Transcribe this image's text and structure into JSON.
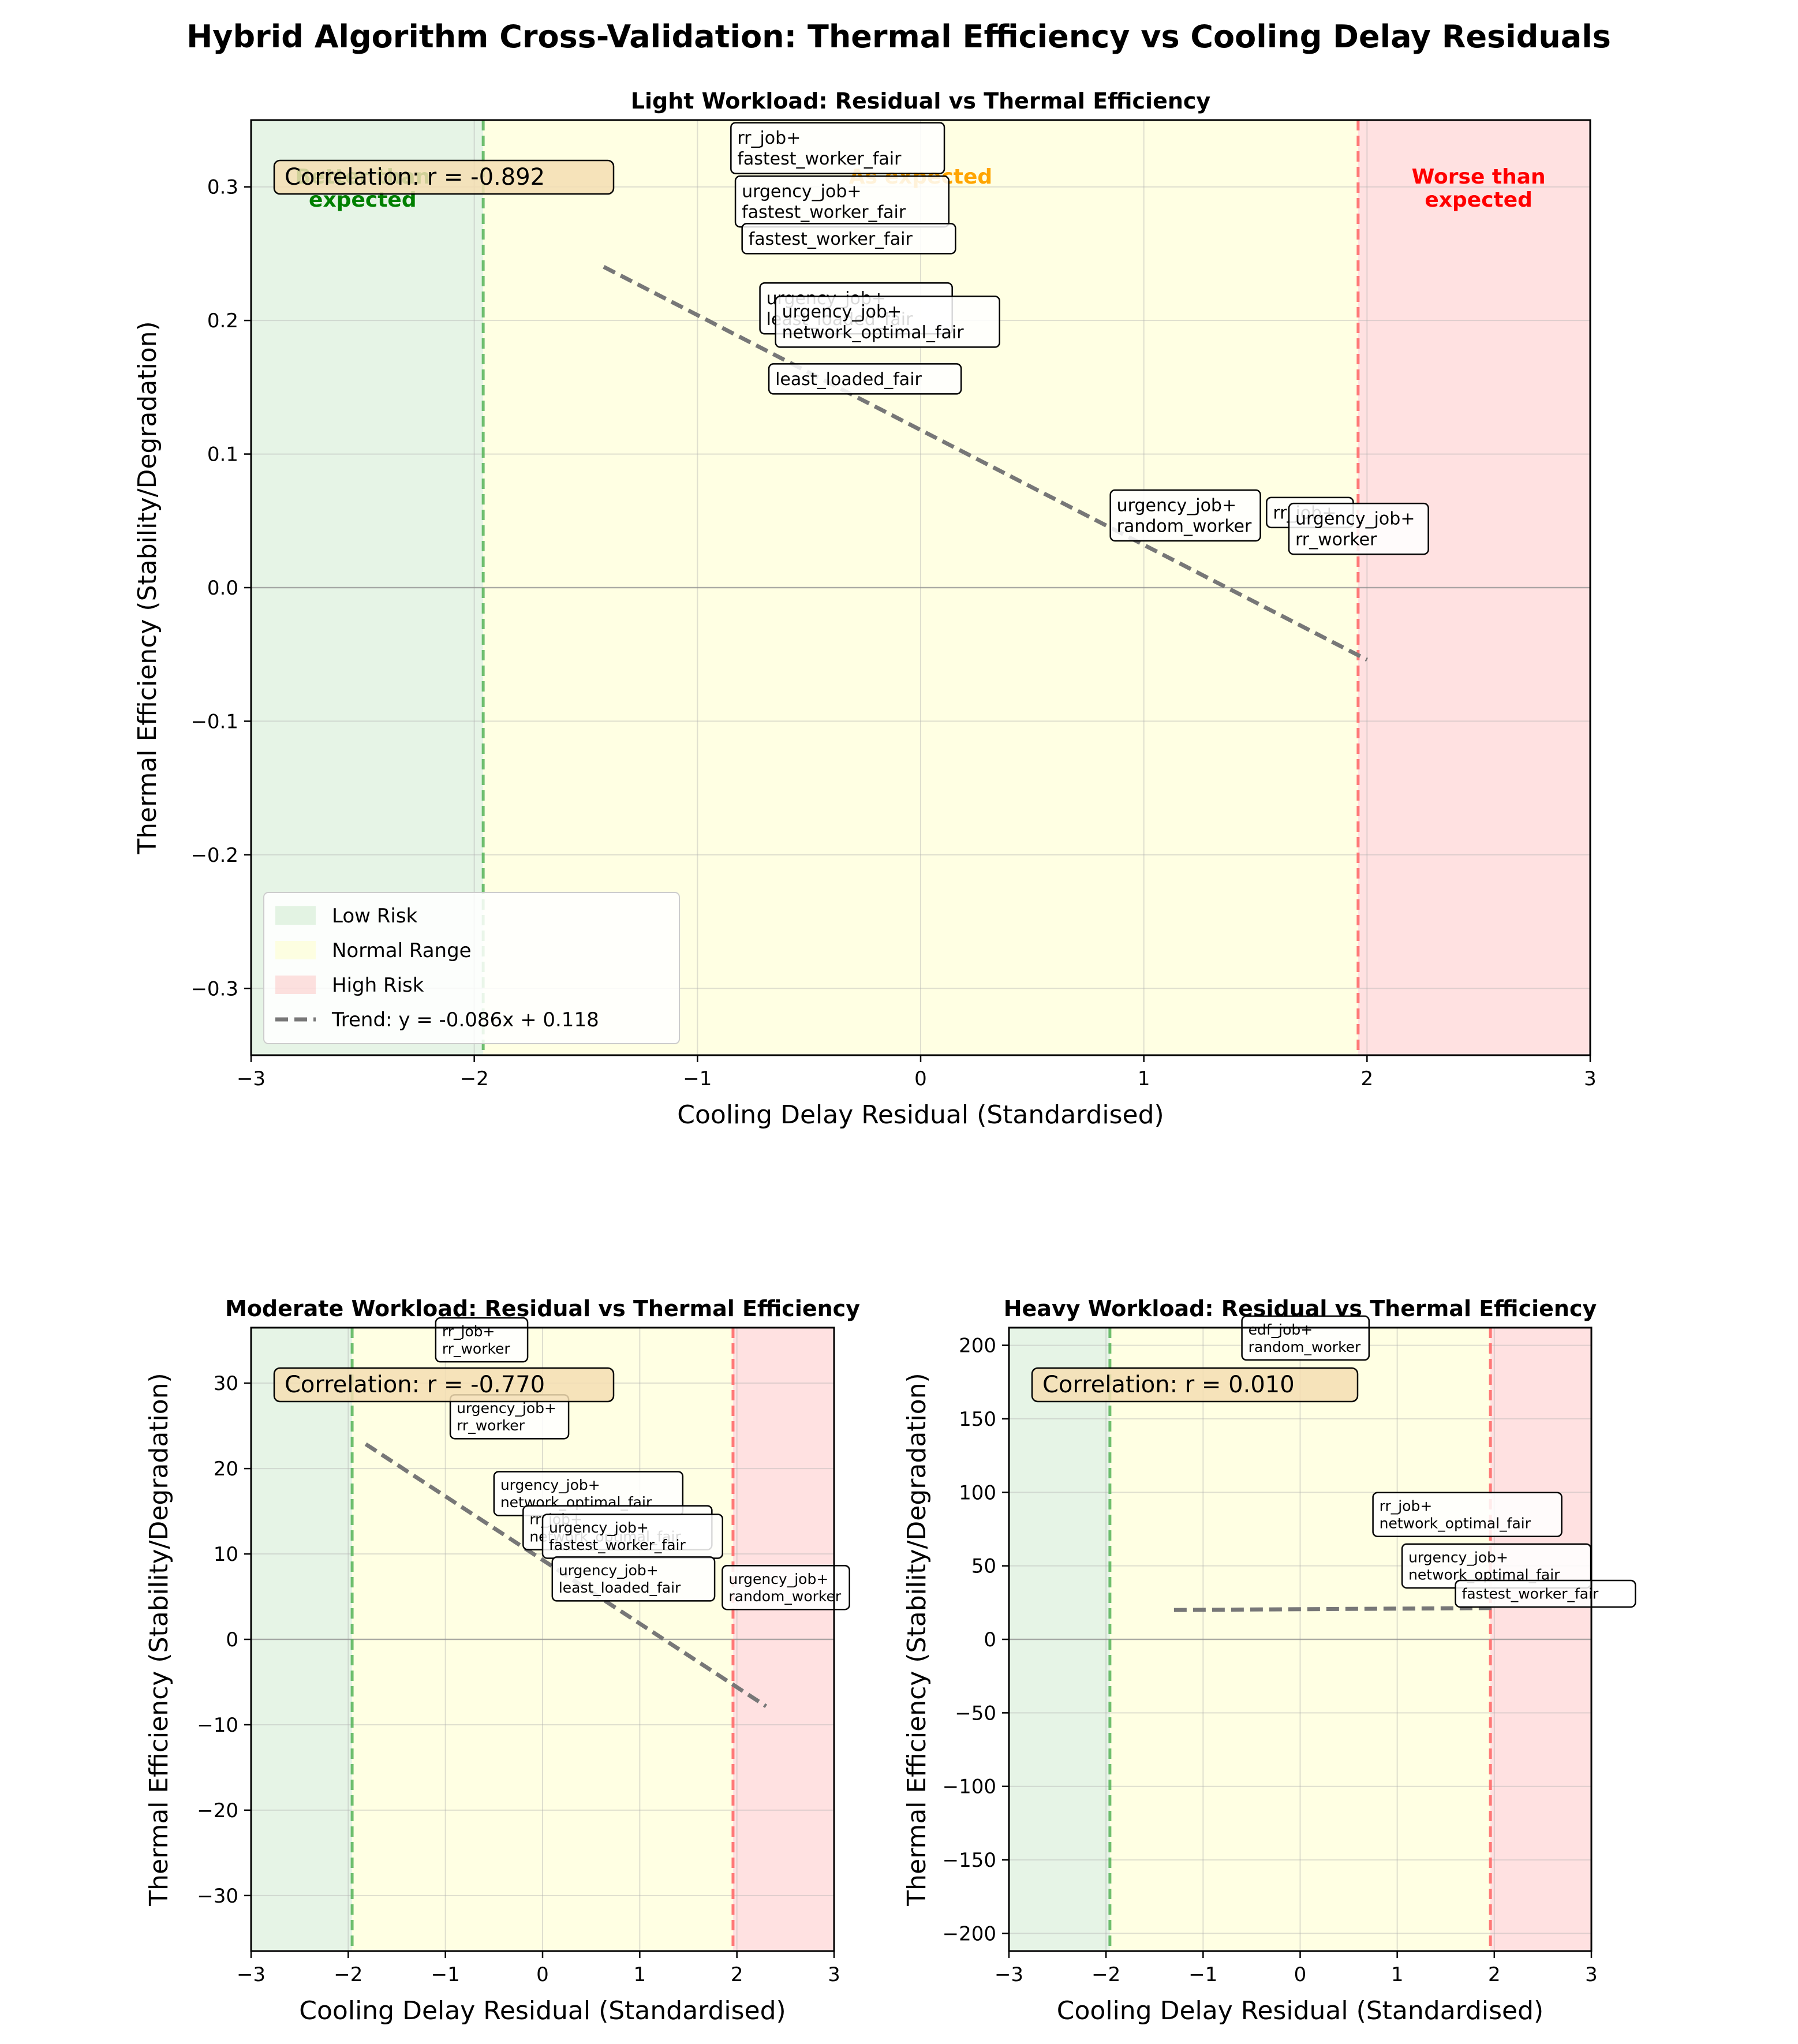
{
  "title": "Hybrid Algorithm Cross-Validation: Thermal Efficiency vs Cooling Delay Residuals",
  "colors": {
    "low_risk": "#4caf50",
    "normal": "#ffff99",
    "high_risk": "#ff6b6b",
    "trend": "#777777",
    "corr_box": "#f5deb3"
  },
  "chart_data": [
    {
      "type": "scatter",
      "title": "Light Workload: Residual vs Thermal Efficiency",
      "xlabel": "Cooling Delay Residual (Standardised)",
      "ylabel": "Thermal Efficiency (Stability/Degradation)",
      "xlim": [
        -3,
        3
      ],
      "ylim": [
        -0.35,
        0.35
      ],
      "xticks": [
        -3,
        -2,
        -1,
        0,
        1,
        2,
        3
      ],
      "yticks": [
        -0.3,
        -0.2,
        -0.1,
        0.0,
        0.1,
        0.2,
        0.3
      ],
      "grid": true,
      "legend_position": "lower-left",
      "zones": {
        "low_max": -1.96,
        "high_min": 1.96
      },
      "zone_labels": {
        "better": "Better than\nexpected",
        "expected": "As expected",
        "worse": "Worse than\nexpected"
      },
      "legend": [
        "Low Risk",
        "Normal Range",
        "High Risk",
        "Trend: y = -0.086x + 0.118"
      ],
      "correlation": "Correlation: r = -0.892",
      "trend": {
        "slope": -0.086,
        "intercept": 0.118,
        "x_range": [
          -1.42,
          2.0
        ]
      },
      "points": [
        {
          "x": -0.85,
          "y": 0.31,
          "label": "rr_job+\nfastest_worker_fair"
        },
        {
          "x": -0.83,
          "y": 0.27,
          "label": "urgency_job+\nfastest_worker_fair"
        },
        {
          "x": -0.8,
          "y": 0.25,
          "label": "fastest_worker_fair"
        },
        {
          "x": -0.72,
          "y": 0.19,
          "label": "urgency_job+\nleast_loaded_fair"
        },
        {
          "x": -0.65,
          "y": 0.18,
          "label": "urgency_job+\nnetwork_optimal_fair"
        },
        {
          "x": -0.68,
          "y": 0.145,
          "label": "least_loaded_fair"
        },
        {
          "x": 0.85,
          "y": 0.035,
          "label": "urgency_job+\nrandom_worker"
        },
        {
          "x": 1.55,
          "y": 0.045,
          "label": "rr_job+"
        },
        {
          "x": 1.65,
          "y": 0.025,
          "label": "urgency_job+\nrr_worker"
        }
      ]
    },
    {
      "type": "scatter",
      "title": "Moderate Workload: Residual vs Thermal Efficiency",
      "xlabel": "Cooling Delay Residual (Standardised)",
      "ylabel": "Thermal Efficiency (Stability/Degradation)",
      "xlim": [
        -3,
        3
      ],
      "ylim": [
        -36.5,
        36.5
      ],
      "xticks": [
        -3,
        -2,
        -1,
        0,
        1,
        2,
        3
      ],
      "yticks": [
        -30,
        -20,
        -10,
        0,
        10,
        20,
        30
      ],
      "grid": true,
      "zones": {
        "low_max": -1.96,
        "high_min": 1.96
      },
      "correlation": "Correlation: r = -0.770",
      "trend": {
        "slope": -7.45,
        "intercept": 9.3,
        "x_range": [
          -1.82,
          2.3
        ]
      },
      "points": [
        {
          "x": -1.1,
          "y": 32.5,
          "label": "rr_job+\nrr_worker"
        },
        {
          "x": -0.95,
          "y": 23.5,
          "label": "urgency_job+\nrr_worker"
        },
        {
          "x": -0.5,
          "y": 14.5,
          "label": "urgency_job+\nnetwork_optimal_fair"
        },
        {
          "x": -0.2,
          "y": 10.5,
          "label": "rr_job+\nnetwork_optimal_fair"
        },
        {
          "x": 0.0,
          "y": 9.5,
          "label": "urgency_job+\nfastest_worker_fair"
        },
        {
          "x": 0.1,
          "y": 4.5,
          "label": "urgency_job+\nleast_loaded_fair"
        },
        {
          "x": 1.85,
          "y": 3.5,
          "label": "urgency_job+\nrandom_worker"
        }
      ]
    },
    {
      "type": "scatter",
      "title": "Heavy Workload: Residual vs Thermal Efficiency",
      "xlabel": "Cooling Delay Residual (Standardised)",
      "ylabel": "Thermal Efficiency (Stability/Degradation)",
      "xlim": [
        -3,
        3
      ],
      "ylim": [
        -212,
        212
      ],
      "xticks": [
        -3,
        -2,
        -1,
        0,
        1,
        2,
        3
      ],
      "yticks": [
        -200,
        -150,
        -100,
        -50,
        0,
        50,
        100,
        150,
        200
      ],
      "grid": true,
      "zones": {
        "low_max": -1.96,
        "high_min": 1.96
      },
      "correlation": "Correlation: r = 0.010",
      "trend": {
        "slope": 0.4,
        "intercept": 20.5,
        "x_range": [
          -1.3,
          2.0
        ]
      },
      "points": [
        {
          "x": -0.6,
          "y": 190,
          "label": "edf_job+\nrandom_worker"
        },
        {
          "x": 0.75,
          "y": 70,
          "label": "rr_job+\nnetwork_optimal_fair"
        },
        {
          "x": 1.05,
          "y": 35,
          "label": "urgency_job+\nnetwork_optimal_fair"
        },
        {
          "x": 1.6,
          "y": 22,
          "label": "fastest_worker_fair"
        }
      ]
    }
  ]
}
